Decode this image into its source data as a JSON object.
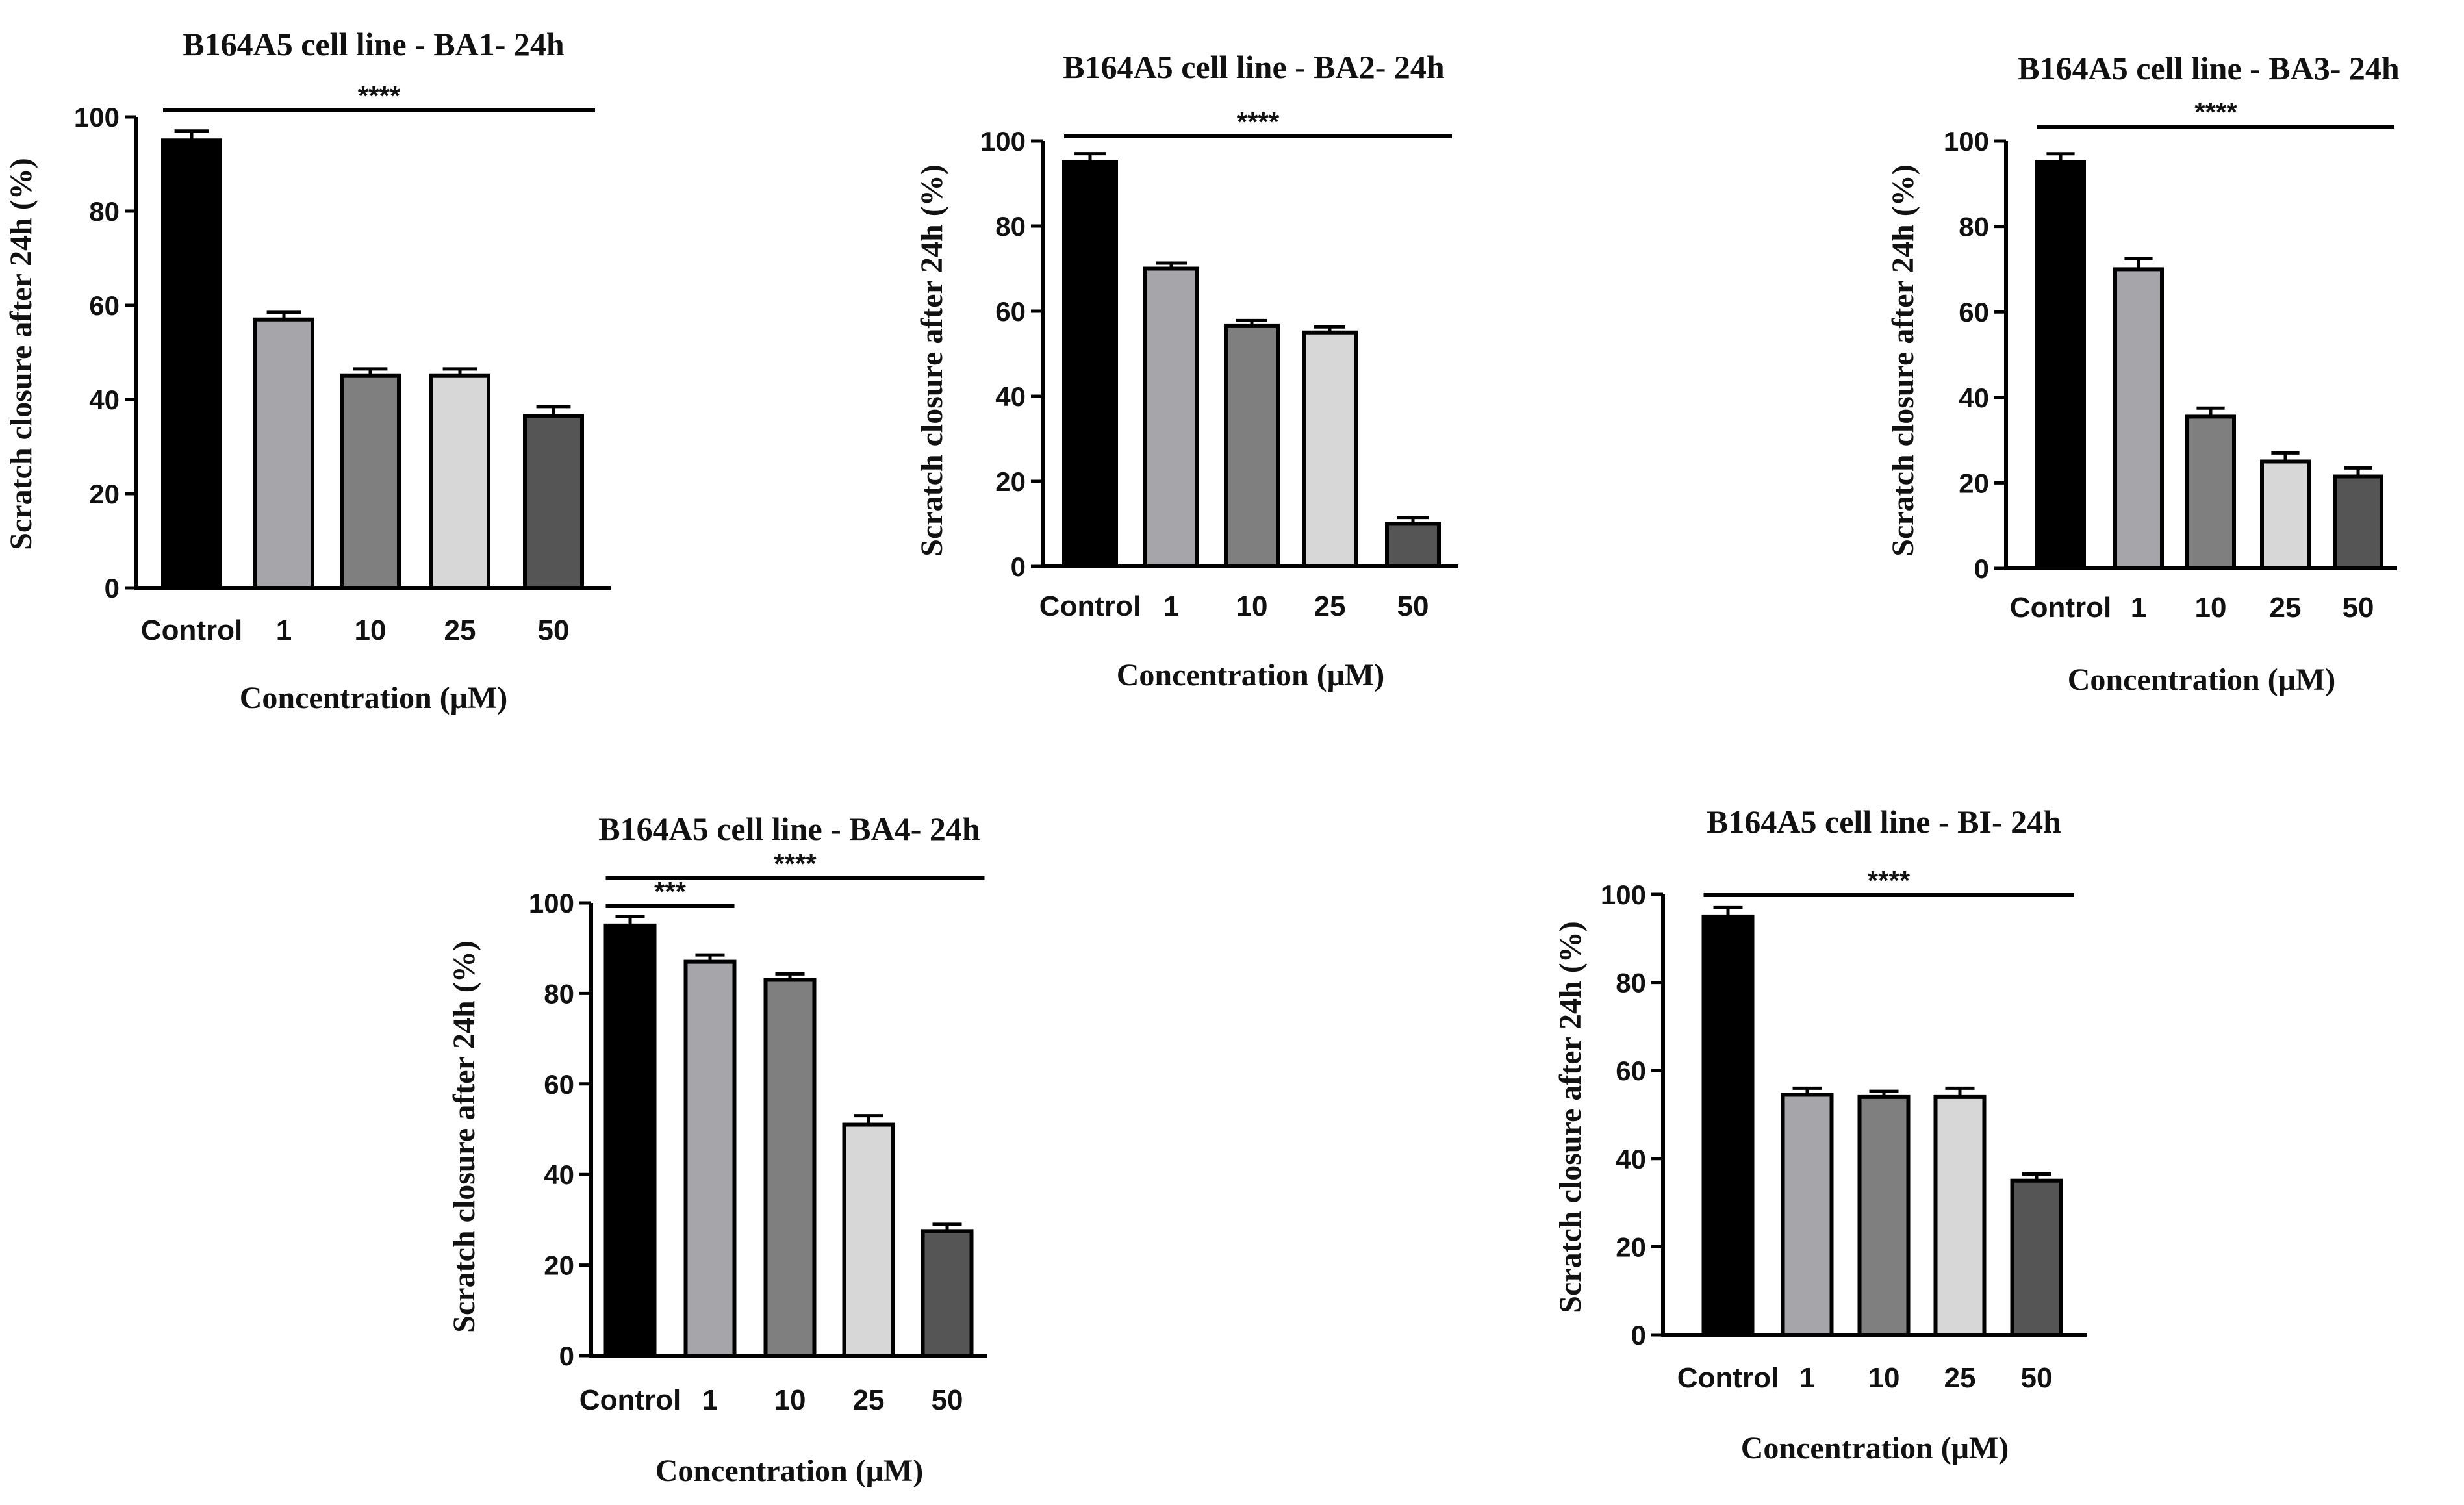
{
  "chart_data": [
    {
      "type": "bar",
      "title": "B164A5 cell line - BA1- 24h",
      "xlabel": "Concentration (μM)",
      "ylabel": "Scratch closure after 24h (%)",
      "ylim": [
        0,
        100
      ],
      "yticks": [
        0,
        20,
        40,
        60,
        80,
        100
      ],
      "categories": [
        "Control",
        "1",
        "10",
        "25",
        "50"
      ],
      "values": [
        95,
        57,
        45,
        45,
        36.5
      ],
      "errors": [
        2,
        1.5,
        1.5,
        1.5,
        2
      ],
      "colors": [
        "#000000",
        "#a6a6aa",
        "#7f7f80",
        "#d7d7d7",
        "#555555"
      ],
      "significance": [
        {
          "from": "Control",
          "to": "50",
          "label": "****",
          "level": 1
        }
      ]
    },
    {
      "type": "bar",
      "title": "B164A5 cell line - BA2- 24h",
      "xlabel": "Concentration (μM)",
      "ylabel": "Scratch closure after 24h (%)",
      "ylim": [
        0,
        100
      ],
      "yticks": [
        0,
        20,
        40,
        60,
        80,
        100
      ],
      "categories": [
        "Control",
        "1",
        "10",
        "25",
        "50"
      ],
      "values": [
        95,
        70,
        56.5,
        55,
        10
      ],
      "errors": [
        2,
        1.3,
        1.3,
        1.3,
        1.5
      ],
      "colors": [
        "#000000",
        "#a6a6aa",
        "#7f7f80",
        "#d7d7d7",
        "#555555"
      ],
      "significance": [
        {
          "from": "Control",
          "to": "50",
          "label": "****",
          "level": 1
        }
      ]
    },
    {
      "type": "bar",
      "title": "B164A5 cell line - BA3- 24h",
      "xlabel": "Concentration (μM)",
      "ylabel": "Scratch closure after 24h (%)",
      "ylim": [
        0,
        100
      ],
      "yticks": [
        0,
        20,
        40,
        60,
        80,
        100
      ],
      "categories": [
        "Control",
        "1",
        "10",
        "25",
        "50"
      ],
      "values": [
        95,
        70,
        35.5,
        25,
        21.5
      ],
      "errors": [
        2,
        2.5,
        2,
        2,
        2
      ],
      "colors": [
        "#000000",
        "#a6a6aa",
        "#7f7f80",
        "#d7d7d7",
        "#555555"
      ],
      "significance": [
        {
          "from": "Control",
          "to": "50",
          "label": "****",
          "level": 1
        }
      ]
    },
    {
      "type": "bar",
      "title": "B164A5 cell line - BA4- 24h",
      "xlabel": "Concentration (μM)",
      "ylabel": "Scratch closure after 24h (%)",
      "ylim": [
        0,
        100
      ],
      "yticks": [
        0,
        20,
        40,
        60,
        80,
        100
      ],
      "categories": [
        "Control",
        "1",
        "10",
        "25",
        "50"
      ],
      "values": [
        95,
        87,
        83,
        51,
        27.5
      ],
      "errors": [
        2,
        1.5,
        1.3,
        2,
        1.5
      ],
      "colors": [
        "#000000",
        "#a6a6aa",
        "#7f7f80",
        "#d7d7d7",
        "#555555"
      ],
      "significance": [
        {
          "from": "Control",
          "to": "1",
          "label": "***",
          "level": 1
        },
        {
          "from": "Control",
          "to": "50",
          "label": "****",
          "level": 2
        }
      ]
    },
    {
      "type": "bar",
      "title": "B164A5 cell line - BI- 24h",
      "xlabel": "Concentration (μM)",
      "ylabel": "Scratch closure after 24h (%)",
      "ylim": [
        0,
        100
      ],
      "yticks": [
        0,
        20,
        40,
        60,
        80,
        100
      ],
      "categories": [
        "Control",
        "1",
        "10",
        "25",
        "50"
      ],
      "values": [
        95,
        54.5,
        54,
        54,
        35
      ],
      "errors": [
        2,
        1.5,
        1.3,
        2,
        1.5
      ],
      "colors": [
        "#000000",
        "#a6a6aa",
        "#7f7f80",
        "#d7d7d7",
        "#555555"
      ],
      "significance": [
        {
          "from": "Control",
          "to": "50",
          "label": "****",
          "level": 1
        }
      ]
    }
  ]
}
